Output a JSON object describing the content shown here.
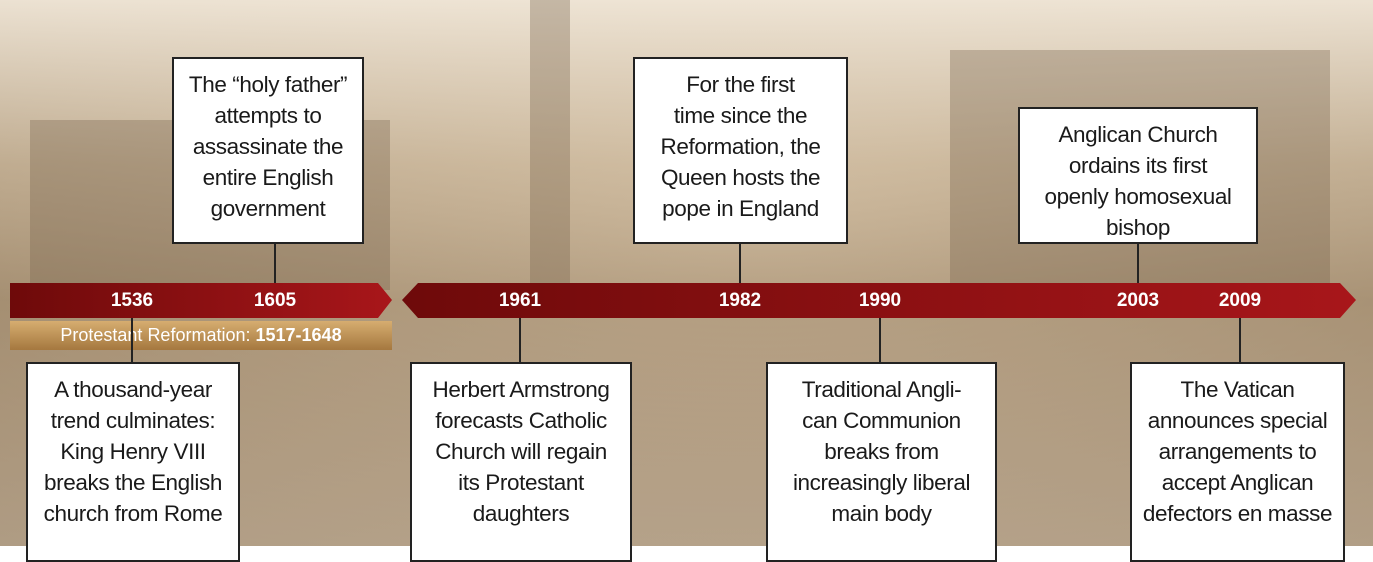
{
  "timeline": {
    "reformation": {
      "label": "Protestant Reformation:",
      "range": "1517-1648"
    },
    "events": [
      {
        "year": "1536",
        "lines": [
          "A thousand-year",
          "trend culminates:",
          "King Henry VIII",
          "breaks the English",
          "church from Rome"
        ]
      },
      {
        "year": "1605",
        "lines": [
          "The “holy father”",
          "attempts to",
          "assassinate the",
          "entire English",
          "government"
        ]
      },
      {
        "year": "1961",
        "lines": [
          "Herbert Armstrong",
          "forecasts Catholic",
          "Church will regain",
          "its Protestant",
          "daughters"
        ]
      },
      {
        "year": "1982",
        "lines": [
          "For the first",
          "time since the",
          "Reformation, the",
          "Queen hosts the",
          "pope in England"
        ]
      },
      {
        "year": "1990",
        "lines": [
          "Traditional Angli-",
          "can Communion",
          "breaks from",
          "increasingly liberal",
          "main body"
        ]
      },
      {
        "year": "2003",
        "lines": [
          "Anglican Church",
          "ordains its first",
          "openly homosexual",
          "bishop"
        ]
      },
      {
        "year": "2009",
        "lines": [
          "The Vatican",
          "announces special",
          "arrangements to",
          "accept Anglican",
          "defectors en masse"
        ]
      }
    ]
  }
}
